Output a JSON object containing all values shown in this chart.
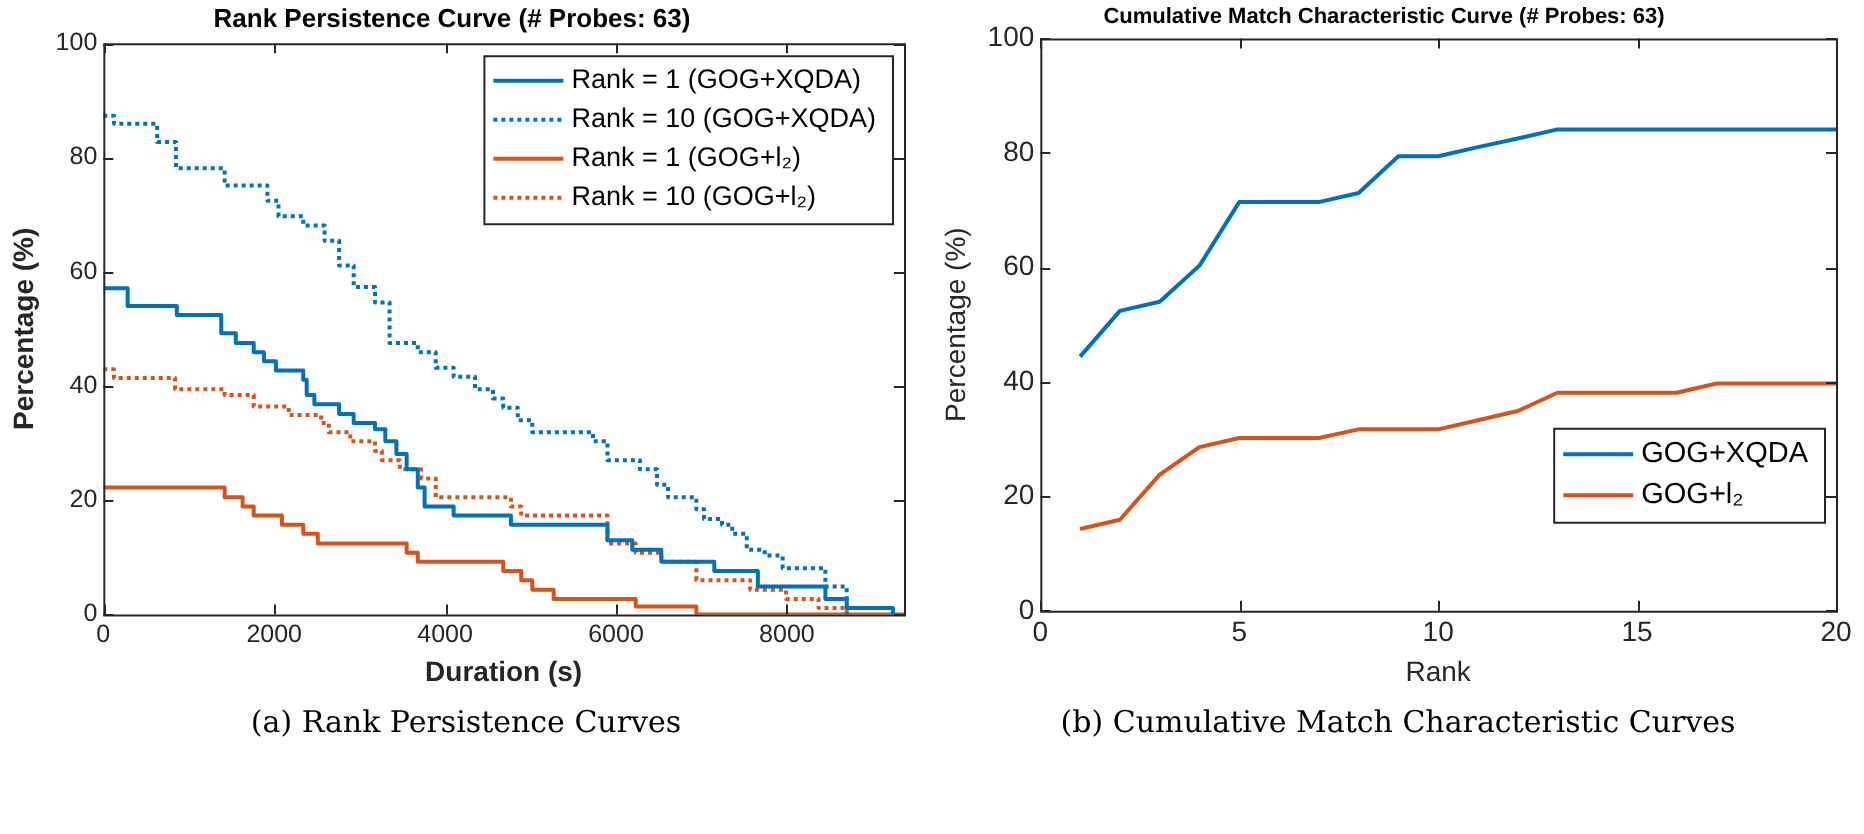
{
  "chart_data": [
    {
      "type": "step",
      "title": "Rank Persistence Curve (# Probes: 63)",
      "xlabel": "Duration (s)",
      "ylabel": "Percentage (%)",
      "xlim": [
        0,
        9370
      ],
      "xticks": [
        0,
        2000,
        4000,
        6000,
        8000
      ],
      "ylim": [
        0,
        100
      ],
      "yticks": [
        0,
        20,
        40,
        60,
        80,
        100
      ],
      "grid": false,
      "legend": "top right",
      "marker": "none",
      "annotations": [
        "(a) Rank Persistence Curves"
      ],
      "series": [
        {
          "name": "Rank = 1 (GOG+XQDA)",
          "color": "#0072bd",
          "line_style": "solid",
          "x": [
            0,
            285,
            860,
            1380,
            1550,
            1760,
            1880,
            2020,
            2340,
            2380,
            2470,
            2760,
            2930,
            3180,
            3300,
            3430,
            3550,
            3680,
            3760,
            4100,
            4770,
            5900,
            6190,
            6530,
            7150,
            7660,
            8450,
            8700,
            9240
          ],
          "values": [
            57.1,
            54.0,
            52.4,
            49.2,
            47.5,
            45.9,
            44.3,
            42.7,
            41.1,
            38.4,
            36.8,
            35.1,
            33.5,
            32.4,
            30.3,
            28.1,
            25.4,
            22.2,
            18.9,
            17.3,
            15.7,
            13.0,
            11.3,
            9.2,
            7.6,
            4.9,
            2.7,
            1.1,
            0
          ]
        },
        {
          "name": "Rank = 10 (GOG+XQDA)",
          "color": "#0072bd",
          "line_style": "dotted",
          "x": [
            0,
            125,
            630,
            850,
            1420,
            1920,
            2050,
            2340,
            2590,
            2760,
            2930,
            3180,
            3350,
            3680,
            3890,
            4100,
            4350,
            4560,
            4680,
            4850,
            5020,
            5730,
            5900,
            6280,
            6480,
            6610,
            6940,
            7030,
            7240,
            7360,
            7530,
            7740,
            7950,
            8450,
            8700
          ],
          "values": [
            87.3,
            85.9,
            82.7,
            78.1,
            75.1,
            72.4,
            69.7,
            68.1,
            65.4,
            61.1,
            57.3,
            54.6,
            47.5,
            45.9,
            43.2,
            41.6,
            39.4,
            37.8,
            36.2,
            34.0,
            31.9,
            30.3,
            27.0,
            25.4,
            22.7,
            20.5,
            18.4,
            16.7,
            15.7,
            14.1,
            11.3,
            10.3,
            8.1,
            4.9,
            0
          ]
        },
        {
          "name": "Rank = 1 (GOG+l₂)",
          "color": "#d95319",
          "line_style": "solid",
          "x": [
            0,
            1420,
            1630,
            1760,
            2090,
            2340,
            2510,
            3550,
            3680,
            4680,
            4890,
            5020,
            5270,
            6230,
            6940,
            9370
          ],
          "values": [
            22.2,
            20.5,
            18.9,
            17.3,
            15.7,
            14.1,
            12.4,
            10.8,
            9.2,
            7.6,
            6.0,
            4.3,
            2.7,
            1.4,
            0,
            0
          ]
        },
        {
          "name": "Rank = 10 (GOG+l₂)",
          "color": "#d95319",
          "line_style": "dotted",
          "x": [
            0,
            125,
            840,
            1420,
            1760,
            2170,
            2550,
            2640,
            2890,
            3180,
            3260,
            3470,
            3720,
            3890,
            4770,
            4890,
            5900,
            6230,
            6530,
            6940,
            7570,
            7990,
            8370,
            8700
          ],
          "values": [
            42.9,
            41.4,
            39.4,
            38.4,
            36.4,
            34.9,
            33.5,
            31.9,
            30.3,
            28.6,
            27.0,
            25.4,
            23.8,
            20.5,
            18.9,
            17.3,
            12.4,
            10.8,
            9.2,
            6.0,
            4.3,
            2.7,
            1.1,
            0
          ]
        }
      ]
    },
    {
      "type": "line",
      "title": "Cumulative Match Characteristic Curve (# Probes: 63)",
      "xlabel": "Rank",
      "ylabel": "Percentage (%)",
      "xlim": [
        0,
        20
      ],
      "xticks": [
        0,
        5,
        10,
        15,
        20
      ],
      "ylim": [
        0,
        100
      ],
      "yticks": [
        0,
        20,
        40,
        60,
        80,
        100
      ],
      "grid": false,
      "legend": "bottom right",
      "marker": "none",
      "annotations": [
        "(b) Cumulative Match Characteristic Curves"
      ],
      "x": [
        1,
        2,
        3,
        4,
        5,
        6,
        7,
        8,
        9,
        10,
        11,
        12,
        13,
        14,
        15,
        16,
        17,
        18,
        19,
        20
      ],
      "series": [
        {
          "name": "GOG+XQDA",
          "color": "#0072bd",
          "values": [
            44.4,
            52.4,
            54.0,
            60.3,
            71.4,
            71.4,
            71.4,
            73.0,
            79.4,
            79.4,
            81.0,
            82.5,
            84.1,
            84.1,
            84.1,
            84.1,
            84.1,
            84.1,
            84.1,
            84.1
          ]
        },
        {
          "name": "GOG+l₂",
          "color": "#d95319",
          "values": [
            14.3,
            15.9,
            23.8,
            28.6,
            30.2,
            30.2,
            30.2,
            31.7,
            31.7,
            31.7,
            33.3,
            34.9,
            38.1,
            38.1,
            38.1,
            38.1,
            39.7,
            39.7,
            39.7,
            39.7
          ]
        }
      ]
    }
  ]
}
